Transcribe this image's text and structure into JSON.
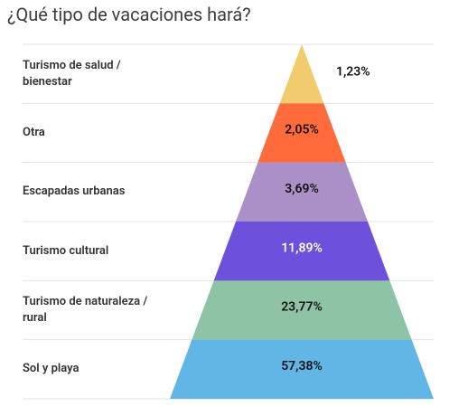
{
  "chart_data": {
    "type": "pyramid",
    "title": "¿Qué tipo de vacaciones hará?",
    "categories": [
      "Turismo de salud / bienestar",
      "Otra",
      "Escapadas urbanas",
      "Turismo cultural",
      "Turismo de naturaleza / rural",
      "Sol y playa"
    ],
    "values": [
      1.23,
      2.05,
      3.69,
      11.89,
      23.77,
      57.38
    ],
    "value_labels": [
      "1,23%",
      "2,05%",
      "3,69%",
      "11,89%",
      "23,77%",
      "57,38%"
    ],
    "colors": [
      "#f1cb6d",
      "#ff6b3a",
      "#ab90c8",
      "#6d50dc",
      "#8ec4a5",
      "#62b6e6"
    ]
  }
}
